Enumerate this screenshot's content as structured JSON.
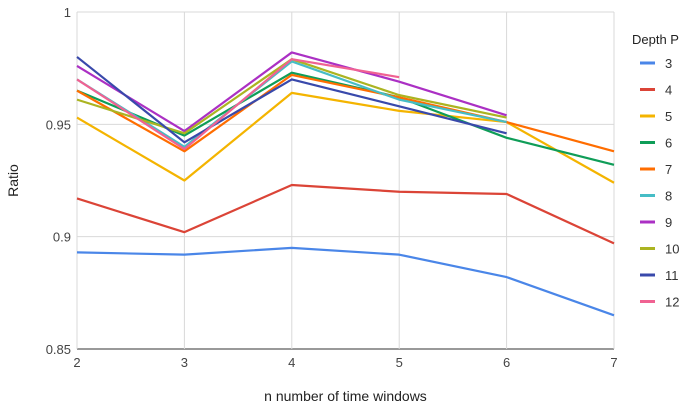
{
  "chart_data": {
    "type": "line",
    "title": "",
    "xlabel": "n number of time windows",
    "ylabel": "Ratio",
    "x": [
      2,
      3,
      4,
      5,
      6,
      7
    ],
    "xlim": [
      2,
      7
    ],
    "ylim": [
      0.85,
      1
    ],
    "yticks": [
      "0.85",
      "0.9",
      "0.95",
      "1"
    ],
    "xticks": [
      "2",
      "3",
      "4",
      "5",
      "6",
      "7"
    ],
    "grid": true,
    "legend_title": "Depth P",
    "legend_position": "right",
    "series": [
      {
        "name": "3",
        "color": "#4a86e8",
        "values": [
          0.893,
          0.892,
          0.895,
          0.892,
          0.882,
          0.865
        ]
      },
      {
        "name": "4",
        "color": "#db4437",
        "values": [
          0.917,
          0.902,
          0.923,
          0.92,
          0.919,
          0.897
        ]
      },
      {
        "name": "5",
        "color": "#f4b400",
        "values": [
          0.953,
          0.925,
          0.964,
          0.956,
          0.951,
          0.924
        ]
      },
      {
        "name": "6",
        "color": "#0f9d58",
        "values": [
          0.965,
          0.945,
          0.973,
          0.962,
          0.944,
          0.932
        ]
      },
      {
        "name": "7",
        "color": "#ff6d00",
        "values": [
          0.965,
          0.938,
          0.972,
          0.962,
          0.951,
          0.938
        ]
      },
      {
        "name": "8",
        "color": "#46bdc6",
        "values": [
          0.97,
          0.94,
          0.978,
          0.961,
          0.951,
          null
        ]
      },
      {
        "name": "9",
        "color": "#ab30c4",
        "values": [
          0.976,
          0.947,
          0.982,
          0.969,
          0.954,
          null
        ]
      },
      {
        "name": "10",
        "color": "#abb421",
        "values": [
          0.961,
          0.946,
          0.979,
          0.963,
          0.953,
          null
        ]
      },
      {
        "name": "11",
        "color": "#3949ab",
        "values": [
          0.98,
          0.942,
          0.97,
          0.958,
          0.946,
          null
        ]
      },
      {
        "name": "12",
        "color": "#f06292",
        "values": [
          0.97,
          0.939,
          0.979,
          0.971,
          null,
          null
        ]
      }
    ]
  }
}
